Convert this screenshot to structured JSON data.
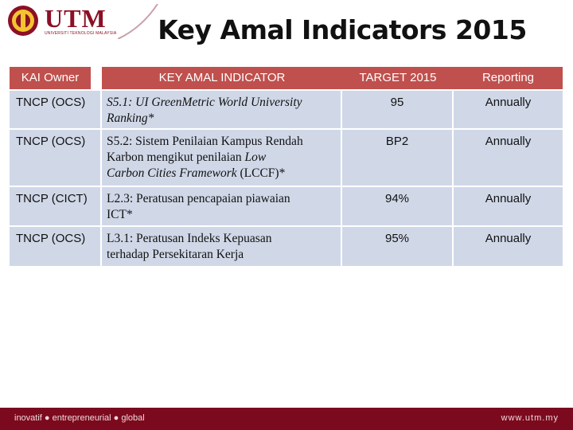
{
  "logo": {
    "text": "UTM",
    "subtitle": "UNIVERSITI TEKNOLOGI MALAYSIA"
  },
  "title": "Key Amal Indicators 2015",
  "table": {
    "headers": [
      "KAI Owner",
      "KEY AMAL INDICATOR",
      "TARGET 2015",
      "Reporting"
    ],
    "rows": [
      {
        "owner": "TNCP (OCS)",
        "kai_lines": [
          "S5.1: UI GreenMetric World University",
          "Ranking*"
        ],
        "target": "95",
        "reporting": "Annually"
      },
      {
        "owner": "TNCP (OCS)",
        "kai_lines": [
          "S5.2: Sistem Penilaian Kampus Rendah",
          "Karbon mengikut penilaian Low",
          "Carbon Cities Framework (LCCF)*"
        ],
        "target": "BP2",
        "reporting": "Annually"
      },
      {
        "owner": "TNCP (CICT)",
        "kai_lines": [
          "L2.3: Peratusan pencapaian piawaian",
          "ICT*"
        ],
        "target": "94%",
        "reporting": "Annually"
      },
      {
        "owner": "TNCP (OCS)",
        "kai_lines": [
          "L3.1: Peratusan Indeks Kepuasan",
          "terhadap Persekitaran Kerja"
        ],
        "target": "95%",
        "reporting": "Annually"
      }
    ]
  },
  "footer": {
    "left": "inovatif ● entrepreneurial ● global",
    "right": "www.utm.my"
  },
  "colors": {
    "header_bg": "#c0504d",
    "cell_bg": "#d0d8e8",
    "footer_bg": "#7c0a1e",
    "brand": "#8b1025"
  }
}
